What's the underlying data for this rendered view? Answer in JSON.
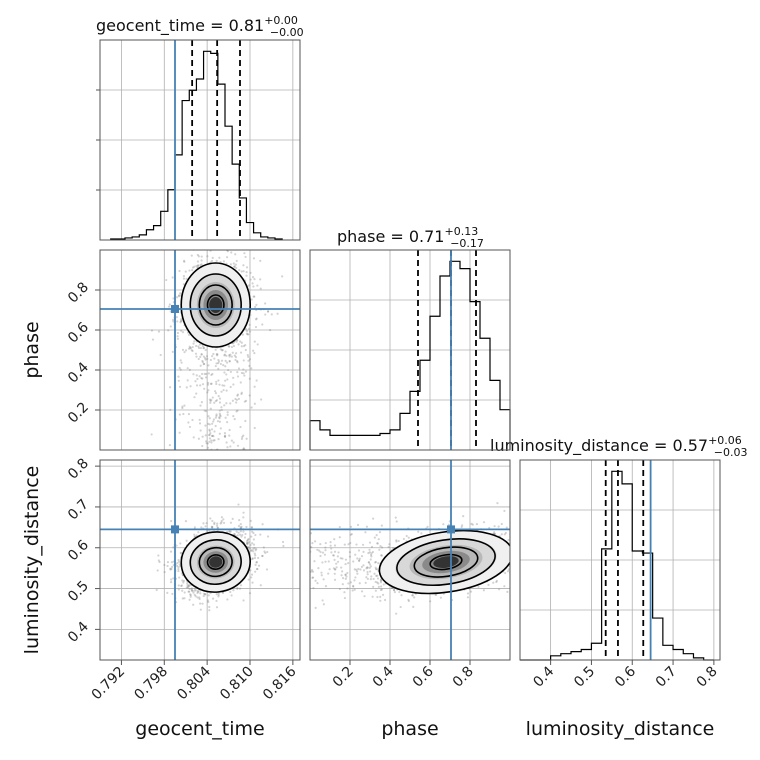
{
  "chart_data": {
    "type": "corner",
    "parameters": [
      "geocent_time",
      "phase",
      "luminosity_distance"
    ],
    "titles": [
      {
        "param": "geocent_time",
        "value": "0.81",
        "plus": "+0.00",
        "minus": "−0.00"
      },
      {
        "param": "phase",
        "value": "0.71",
        "plus": "+0.13",
        "minus": "−0.17"
      },
      {
        "param": "luminosity_distance",
        "value": "0.57",
        "plus": "+0.06",
        "minus": "−0.03"
      }
    ],
    "ranges": {
      "geocent_time": [
        0.789,
        0.817
      ],
      "phase": [
        0.0,
        1.0
      ],
      "luminosity_distance": [
        0.325,
        0.815
      ]
    },
    "ticks": {
      "geocent_time": [
        "0.792",
        "0.798",
        "0.804",
        "0.810",
        "0.816"
      ],
      "phase": [
        "0.2",
        "0.4",
        "0.6",
        "0.8"
      ],
      "luminosity_distance_x": [
        "0.4",
        "0.5",
        "0.6",
        "0.7",
        "0.8"
      ],
      "luminosity_distance_y": [
        "0.4",
        "0.5",
        "0.6",
        "0.7",
        "0.8"
      ]
    },
    "truths": {
      "geocent_time": 0.7995,
      "phase": 0.705,
      "luminosity_distance": 0.645
    },
    "quantiles": {
      "geocent_time": [
        0.8019,
        0.8054,
        0.8086
      ],
      "phase": [
        0.54,
        0.705,
        0.83
      ],
      "luminosity_distance": [
        0.535,
        0.565,
        0.627
      ]
    },
    "histograms": {
      "geocent_time": {
        "edges": [
          0.7905,
          0.7915,
          0.7925,
          0.7935,
          0.7945,
          0.7955,
          0.7965,
          0.7975,
          0.7985,
          0.7995,
          0.8005,
          0.8015,
          0.8025,
          0.8035,
          0.8045,
          0.8055,
          0.8065,
          0.8075,
          0.8085,
          0.8095,
          0.8105,
          0.8115,
          0.8125,
          0.8135,
          0.8145
        ],
        "counts": [
          1,
          1,
          2,
          3,
          5,
          10,
          14,
          28,
          49,
          83,
          136,
          146,
          157,
          184,
          182,
          152,
          111,
          74,
          41,
          17,
          7,
          3,
          2,
          1
        ]
      },
      "phase": {
        "edges": [
          0.0,
          0.05,
          0.1,
          0.15,
          0.2,
          0.25,
          0.3,
          0.35,
          0.4,
          0.45,
          0.5,
          0.55,
          0.6,
          0.65,
          0.7,
          0.75,
          0.8,
          0.85,
          0.9,
          0.95,
          1.0
        ],
        "counts": [
          16,
          11,
          8,
          8,
          8,
          8,
          8,
          9,
          11,
          20,
          32,
          49,
          73,
          95,
          103,
          99,
          81,
          61,
          38,
          22
        ]
      },
      "luminosity_distance": {
        "edges": [
          0.325,
          0.35,
          0.375,
          0.4,
          0.425,
          0.45,
          0.475,
          0.5,
          0.525,
          0.55,
          0.575,
          0.6,
          0.625,
          0.65,
          0.675,
          0.7,
          0.725,
          0.75,
          0.775,
          0.8
        ],
        "counts": [
          0,
          0,
          0,
          2,
          3,
          4,
          5,
          8,
          53,
          90,
          84,
          52,
          51,
          20,
          7,
          5,
          3,
          1,
          0
        ]
      }
    },
    "pairs": [
      {
        "x": "geocent_time",
        "y": "phase",
        "mean": [
          0.8052,
          0.725
        ],
        "sd": [
          0.0023,
          0.1
        ],
        "rho": 0.0
      },
      {
        "x": "geocent_time",
        "y": "luminosity_distance",
        "mean": [
          0.8052,
          0.565
        ],
        "sd": [
          0.0023,
          0.035
        ],
        "rho": 0.25
      },
      {
        "x": "phase",
        "y": "luminosity_distance",
        "mean": [
          0.68,
          0.565
        ],
        "sd": [
          0.16,
          0.035
        ],
        "rho": 0.35
      }
    ],
    "grid": true,
    "colors": {
      "truth": "#4682b4",
      "hist": "#000000",
      "scatter": "#808080",
      "grid": "#b0b0b0"
    }
  }
}
